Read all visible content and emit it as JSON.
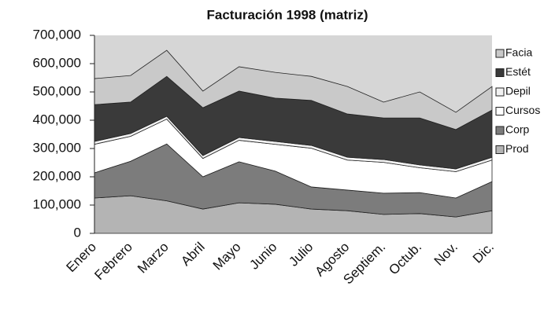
{
  "chart_data": {
    "type": "stacked_area",
    "title": "Facturación 1998 (matriz)",
    "categories": [
      "Enero",
      "Febrero",
      "Marzo",
      "Abril",
      "Mayo",
      "Junio",
      "Julio",
      "Agosto",
      "Septiem.",
      "Octub.",
      "Nov.",
      "Dic."
    ],
    "series": [
      {
        "name": "Prod",
        "color": "#b4b4b4",
        "values": [
          125000,
          133000,
          115000,
          86000,
          108000,
          103000,
          86000,
          80000,
          67000,
          70000,
          58000,
          80000
        ]
      },
      {
        "name": "Corp",
        "color": "#7c7c7c",
        "values": [
          89000,
          122000,
          201000,
          114000,
          145000,
          117000,
          78000,
          73000,
          75000,
          74000,
          67000,
          103000
        ]
      },
      {
        "name": "Cursos",
        "color": "#ffffff",
        "values": [
          101000,
          88000,
          88000,
          65000,
          76000,
          95000,
          137000,
          106000,
          109000,
          88000,
          93000,
          76000
        ]
      },
      {
        "name": "Depil",
        "color": "#f2f2f2",
        "values": [
          10000,
          10000,
          10000,
          10000,
          10000,
          10000,
          10000,
          10000,
          10000,
          10000,
          10000,
          10000
        ]
      },
      {
        "name": "Estét",
        "color": "#3a3a3a",
        "values": [
          130000,
          111000,
          141000,
          169000,
          164000,
          153000,
          159000,
          153000,
          147000,
          166000,
          139000,
          167000
        ]
      },
      {
        "name": "Facia",
        "color": "#c9c9c9",
        "values": [
          92000,
          94000,
          92000,
          59000,
          86000,
          91000,
          85000,
          97000,
          56000,
          92000,
          61000,
          83000
        ]
      }
    ],
    "ylim": [
      0,
      700000
    ],
    "yticks": [
      0,
      {
        "value": 100000,
        "label": "100,000"
      },
      {
        "value": 200000,
        "label": "200,000"
      },
      {
        "value": 300000,
        "label": "300,000"
      },
      {
        "value": 400000,
        "label": "400,000"
      },
      {
        "value": 500000,
        "label": "500,000"
      },
      {
        "value": 600000,
        "label": "600,000"
      },
      {
        "value": 700000,
        "label": "700,000"
      }
    ],
    "legend": "right"
  }
}
